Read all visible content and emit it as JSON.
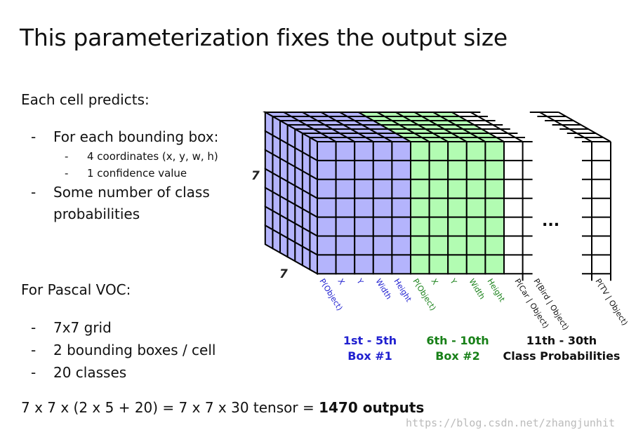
{
  "title": "This parameterization fixes the output size",
  "body": {
    "intro": "Each cell predicts:",
    "items": [
      {
        "text": "For each bounding box:",
        "subitems": [
          "4 coordinates (x, y, w, h)",
          "1 confidence value"
        ]
      },
      {
        "text": "Some number of class probabilities"
      }
    ],
    "voc_heading": "For Pascal VOC:",
    "voc_items": [
      "7x7 grid",
      "2 bounding boxes / cell",
      "20 classes"
    ],
    "formula": "7 x 7 x (2 x 5 + 20) = 7 x 7 x 30 tensor =",
    "formula_bold": "1470 outputs"
  },
  "diagram": {
    "height_label": "7",
    "depth_label": "7",
    "column_labels": [
      "P(Object)",
      "X",
      "Y",
      "Width",
      "Height",
      "P(Object)",
      "X",
      "Y",
      "Width",
      "Height",
      "P(Car | Object)",
      "P(Bird | Object)",
      "P(TV | Object)"
    ],
    "ellipsis": "...",
    "groups": [
      {
        "line1": "1st - 5th",
        "line2": "Box #1"
      },
      {
        "line1": "6th - 10th",
        "line2": "Box #2"
      },
      {
        "line1": "11th - 30th",
        "line2": "Class Probabilities"
      }
    ]
  },
  "watermark": "https://blog.csdn.net/zhangjunhit"
}
